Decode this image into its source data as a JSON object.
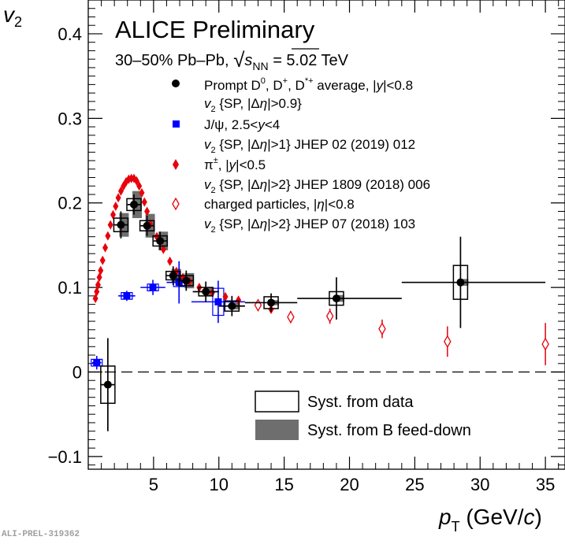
{
  "footer_tag": "ALI-PREL-319362",
  "colors": {
    "d_meson": "#000000",
    "jpsi": "#0000ff",
    "pion": "#e8000b",
    "charged": "#e8000b",
    "syst_feeddown": "#6e6e6e"
  },
  "chart_data": {
    "type": "scatter",
    "title": "ALICE Preliminary",
    "subtitle": "30–50% Pb–Pb, √sNN = 5.02 TeV",
    "xlabel": "pT (GeV/c)",
    "ylabel": "v2",
    "xlim": [
      0,
      36.5
    ],
    "ylim": [
      -0.115,
      0.44
    ],
    "x_ticks": [
      5,
      10,
      15,
      20,
      25,
      30,
      35
    ],
    "y_ticks": [
      -0.1,
      0,
      0.1,
      0.2,
      0.3,
      0.4
    ],
    "y_tick_labels": [
      "−0.1",
      "0",
      "0.1",
      "0.2",
      "0.3",
      "0.4"
    ],
    "zero_line": "dashed",
    "grid": false,
    "legend_position": "top-right",
    "series": [
      {
        "name": "Prompt D0, D+, D*+ average, |y|<0.8",
        "label_line1": "Prompt D, D, D average, |y|<0.8",
        "label_line2": "v {SP, |Δη|>0.9}",
        "marker": "filled-circle",
        "points": [
          {
            "x": 1.5,
            "y": -0.015,
            "xerr": [
              0.5,
              0.5
            ],
            "yerr": 0.055,
            "syst": 0.022,
            "syst_b": 0.0
          },
          {
            "x": 2.5,
            "y": 0.174,
            "xerr": [
              0.5,
              0.5
            ],
            "yerr": 0.016,
            "syst": 0.008,
            "syst_b": 0.014
          },
          {
            "x": 3.5,
            "y": 0.198,
            "xerr": [
              0.5,
              0.5
            ],
            "yerr": 0.012,
            "syst": 0.007,
            "syst_b": 0.016
          },
          {
            "x": 4.5,
            "y": 0.173,
            "xerr": [
              0.5,
              0.5
            ],
            "yerr": 0.012,
            "syst": 0.006,
            "syst_b": 0.014
          },
          {
            "x": 5.5,
            "y": 0.155,
            "xerr": [
              0.5,
              0.5
            ],
            "yerr": 0.011,
            "syst": 0.006,
            "syst_b": 0.011
          },
          {
            "x": 6.5,
            "y": 0.114,
            "xerr": [
              0.5,
              0.5
            ],
            "yerr": 0.011,
            "syst": 0.005,
            "syst_b": 0.008
          },
          {
            "x": 7.5,
            "y": 0.108,
            "xerr": [
              0.5,
              0.5
            ],
            "yerr": 0.012,
            "syst": 0.006,
            "syst_b": 0.009
          },
          {
            "x": 9.0,
            "y": 0.095,
            "xerr": [
              1.0,
              1.0
            ],
            "yerr": 0.012,
            "syst": 0.005,
            "syst_b": 0.005
          },
          {
            "x": 11.0,
            "y": 0.078,
            "xerr": [
              1.0,
              1.0
            ],
            "yerr": 0.012,
            "syst": 0.006,
            "syst_b": 0.004
          },
          {
            "x": 14.0,
            "y": 0.082,
            "xerr": [
              2.0,
              2.0
            ],
            "yerr": 0.011,
            "syst": 0.007,
            "syst_b": 0.003
          },
          {
            "x": 19.0,
            "y": 0.087,
            "xerr": [
              3.0,
              5.0
            ],
            "yerr": 0.025,
            "syst": 0.008,
            "syst_b": 0.004
          },
          {
            "x": 28.5,
            "y": 0.106,
            "xerr": [
              4.5,
              6.5
            ],
            "yerr": 0.054,
            "syst": 0.02,
            "syst_b": 0.004
          }
        ]
      },
      {
        "name": "J/ψ, 2.5<y<4",
        "label_line1": "J/ψ, 2.5<y<4",
        "label_line2": "v {SP, |Δη|>1} JHEP 02 (2019) 012",
        "marker": "filled-square",
        "points": [
          {
            "x": 0.65,
            "y": 0.011,
            "xerr": [
              0.35,
              0.35
            ],
            "yerr": 0.008,
            "syst": 0.004
          },
          {
            "x": 2.95,
            "y": 0.09,
            "xerr": [
              0.65,
              0.65
            ],
            "yerr": 0.006,
            "syst": 0.004
          },
          {
            "x": 4.95,
            "y": 0.1,
            "xerr": [
              0.95,
              0.95
            ],
            "yerr": 0.009,
            "syst": 0.004
          },
          {
            "x": 6.95,
            "y": 0.106,
            "xerr": [
              0.95,
              0.95
            ],
            "yerr": 0.025,
            "syst": 0.005
          },
          {
            "x": 9.95,
            "y": 0.083,
            "xerr": [
              2.05,
              2.05
            ],
            "yerr": 0.025,
            "syst": 0.016
          }
        ]
      },
      {
        "name": "π±, |y|<0.5",
        "label_line1": "π, |y|<0.5",
        "label_line2": "v {SP, |Δη|>2} JHEP 1809 (2018) 006",
        "marker": "filled-diamond",
        "points": [
          {
            "x": 0.55,
            "y": 0.087
          },
          {
            "x": 0.65,
            "y": 0.095
          },
          {
            "x": 0.75,
            "y": 0.103
          },
          {
            "x": 0.85,
            "y": 0.112
          },
          {
            "x": 0.95,
            "y": 0.12
          },
          {
            "x": 1.1,
            "y": 0.132
          },
          {
            "x": 1.3,
            "y": 0.147
          },
          {
            "x": 1.5,
            "y": 0.161
          },
          {
            "x": 1.7,
            "y": 0.174
          },
          {
            "x": 1.9,
            "y": 0.186
          },
          {
            "x": 2.1,
            "y": 0.196
          },
          {
            "x": 2.3,
            "y": 0.206
          },
          {
            "x": 2.5,
            "y": 0.214
          },
          {
            "x": 2.7,
            "y": 0.22
          },
          {
            "x": 2.9,
            "y": 0.225
          },
          {
            "x": 3.1,
            "y": 0.228
          },
          {
            "x": 3.3,
            "y": 0.229
          },
          {
            "x": 3.5,
            "y": 0.229
          },
          {
            "x": 3.7,
            "y": 0.226
          },
          {
            "x": 3.9,
            "y": 0.22
          },
          {
            "x": 4.1,
            "y": 0.212
          },
          {
            "x": 4.3,
            "y": 0.201
          },
          {
            "x": 4.5,
            "y": 0.19
          },
          {
            "x": 4.75,
            "y": 0.175
          },
          {
            "x": 5.25,
            "y": 0.16
          },
          {
            "x": 5.75,
            "y": 0.145
          },
          {
            "x": 6.25,
            "y": 0.131
          },
          {
            "x": 6.75,
            "y": 0.119
          },
          {
            "x": 7.25,
            "y": 0.112
          },
          {
            "x": 7.75,
            "y": 0.107
          },
          {
            "x": 8.5,
            "y": 0.1
          },
          {
            "x": 9.5,
            "y": 0.094
          },
          {
            "x": 10.5,
            "y": 0.089
          },
          {
            "x": 11.5,
            "y": 0.085
          },
          {
            "x": 13.0,
            "y": 0.08
          },
          {
            "x": 14.0,
            "y": 0.074
          }
        ]
      },
      {
        "name": "charged particles, |η|<0.8",
        "label_line1": "charged particles, |η|<0.8",
        "label_line2": "v {SP, |Δη|>2} JHEP 07 (2018) 103",
        "marker": "open-diamond",
        "points": [
          {
            "x": 13.0,
            "y": 0.079,
            "yerr": 0.006
          },
          {
            "x": 15.5,
            "y": 0.065,
            "yerr": 0.007
          },
          {
            "x": 18.5,
            "y": 0.066,
            "yerr": 0.009
          },
          {
            "x": 22.5,
            "y": 0.051,
            "yerr": 0.011
          },
          {
            "x": 27.5,
            "y": 0.036,
            "yerr": 0.018
          },
          {
            "x": 35.0,
            "y": 0.033,
            "yerr": 0.025
          }
        ]
      }
    ],
    "legend_syst": [
      {
        "label": "Syst. from data",
        "style": "open-box"
      },
      {
        "label": "Syst. from B feed-down",
        "style": "filled-gray"
      }
    ]
  }
}
